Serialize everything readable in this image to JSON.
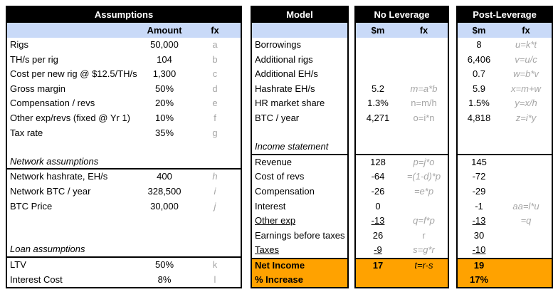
{
  "colors": {
    "table_header_bg": "#000000",
    "table_header_text": "#ffffff",
    "subheader_bg": "#c9daf8",
    "highlight_bg": "#ffa200",
    "formula_text": "#a6a6a6"
  },
  "assumptions": {
    "title": "Assumptions",
    "headers": {
      "amount": "Amount",
      "fx": "fx"
    },
    "rows": [
      {
        "label": "Rigs",
        "amount": "50,000",
        "fx": "a"
      },
      {
        "label": "TH/s per rig",
        "amount": "104",
        "fx": "b"
      },
      {
        "label": "Cost per new rig @ $12.5/TH/s",
        "amount": "1,300",
        "fx": "c"
      },
      {
        "label": "Gross margin",
        "amount": "50%",
        "fx": "d"
      },
      {
        "label": "Compensation / revs",
        "amount": "20%",
        "fx": "e"
      },
      {
        "label": "Other exp/revs (fixed @ Yr 1)",
        "amount": "10%",
        "fx": "f"
      },
      {
        "label": "Tax rate",
        "amount": "35%",
        "fx": "g"
      },
      {
        "label": "",
        "amount": "",
        "fx": ""
      },
      {
        "label": "Network assumptions",
        "amount": "",
        "fx": ""
      },
      {
        "label": "Network hashrate, EH/s",
        "amount": "400",
        "fx": "h"
      },
      {
        "label": "Network BTC / year",
        "amount": "328,500",
        "fx": "i"
      },
      {
        "label": "BTC Price",
        "amount": "30,000",
        "fx": "j"
      },
      {
        "label": "",
        "amount": "",
        "fx": ""
      },
      {
        "label": "",
        "amount": "",
        "fx": ""
      },
      {
        "label": "Loan assumptions",
        "amount": "",
        "fx": ""
      },
      {
        "label": "LTV",
        "amount": "50%",
        "fx": "k"
      },
      {
        "label": "Interest Cost",
        "amount": "8%",
        "fx": "l"
      }
    ]
  },
  "model": {
    "title": "Model",
    "rows": [
      {
        "label": "Borrowings"
      },
      {
        "label": "Additional rigs"
      },
      {
        "label": "Additional EH/s"
      },
      {
        "label": "Hashrate EH/s"
      },
      {
        "label": "HR market share"
      },
      {
        "label": "BTC / year"
      },
      {
        "label": ""
      },
      {
        "label": "Income statement"
      },
      {
        "label": "Revenue"
      },
      {
        "label": "Cost of revs"
      },
      {
        "label": "Compensation"
      },
      {
        "label": "Interest"
      },
      {
        "label": "Other exp"
      },
      {
        "label": "Earnings before taxes"
      },
      {
        "label": "Taxes"
      },
      {
        "label": "Net Income"
      },
      {
        "label": "% Increase"
      }
    ]
  },
  "no_leverage": {
    "title": "No Leverage",
    "headers": {
      "m": "$m",
      "fx": "fx"
    },
    "rows": [
      {
        "m": "",
        "fx": ""
      },
      {
        "m": "",
        "fx": ""
      },
      {
        "m": "",
        "fx": ""
      },
      {
        "m": "5.2",
        "fx": "m=a*b"
      },
      {
        "m": "1.3%",
        "fx": "n=m/h"
      },
      {
        "m": "4,271",
        "fx": "o=i*n"
      },
      {
        "m": "",
        "fx": ""
      },
      {
        "m": "",
        "fx": ""
      },
      {
        "m": "128",
        "fx": "p=j*o"
      },
      {
        "m": "-64",
        "fx": "=(1-d)*p"
      },
      {
        "m": "-26",
        "fx": "=e*p"
      },
      {
        "m": "0",
        "fx": ""
      },
      {
        "m": "-13",
        "fx": "q=f*p"
      },
      {
        "m": "26",
        "fx": "r"
      },
      {
        "m": "-9",
        "fx": "s=g*r"
      },
      {
        "m": "17",
        "fx": "t=r-s"
      },
      {
        "m": "",
        "fx": ""
      }
    ]
  },
  "post_leverage": {
    "title": "Post-Leverage",
    "headers": {
      "m": "$m",
      "fx": "fx"
    },
    "rows": [
      {
        "m": "8",
        "fx": "u=k*t"
      },
      {
        "m": "6,406",
        "fx": "v=u/c"
      },
      {
        "m": "0.7",
        "fx": "w=b*v"
      },
      {
        "m": "5.9",
        "fx": "x=m+w"
      },
      {
        "m": "1.5%",
        "fx": "y=x/h"
      },
      {
        "m": "4,818",
        "fx": "z=i*y"
      },
      {
        "m": "",
        "fx": ""
      },
      {
        "m": "",
        "fx": ""
      },
      {
        "m": "145",
        "fx": ""
      },
      {
        "m": "-72",
        "fx": ""
      },
      {
        "m": "-29",
        "fx": ""
      },
      {
        "m": "-1",
        "fx": "aa=l*u"
      },
      {
        "m": "-13",
        "fx": "=q"
      },
      {
        "m": "30",
        "fx": ""
      },
      {
        "m": "-10",
        "fx": ""
      },
      {
        "m": "19",
        "fx": ""
      },
      {
        "m": "17%",
        "fx": ""
      }
    ]
  }
}
